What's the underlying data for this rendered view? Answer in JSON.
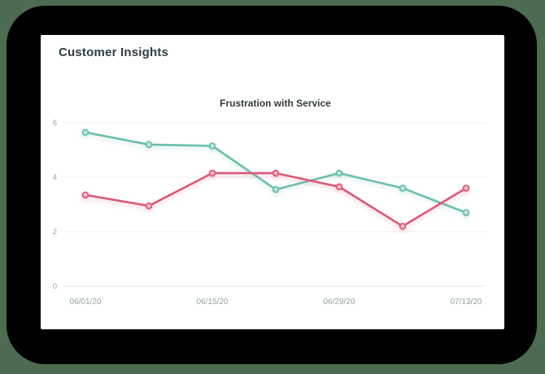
{
  "card": {
    "title": "Customer Insights"
  },
  "colors": {
    "page_background": "#4c6b51",
    "shadow_shape": "#000000",
    "card_background": "#ffffff",
    "heading_text": "#2e3d3f",
    "grid": "#efefef",
    "tick_text": "#97a6a3"
  },
  "chart_data": {
    "type": "line",
    "title": "Frustration with Service",
    "xlabel": "",
    "ylabel": "",
    "ylim": [
      0,
      6
    ],
    "yticks": [
      0,
      2,
      4,
      6
    ],
    "grid": true,
    "legend": "none",
    "num_points": 7,
    "x_tick_labels": [
      "06/01/20",
      "06/15/20",
      "06/29/20",
      "07/13/20"
    ],
    "x_tick_indices": [
      0,
      2,
      4,
      6
    ],
    "series": [
      {
        "name": "teal-series",
        "color": "#69bfad",
        "values": [
          5.65,
          5.2,
          5.15,
          3.55,
          4.15,
          3.6,
          2.7
        ]
      },
      {
        "name": "red-series",
        "color": "#dd5878",
        "values": [
          3.35,
          2.95,
          4.15,
          4.15,
          3.65,
          2.2,
          3.6
        ]
      }
    ]
  }
}
